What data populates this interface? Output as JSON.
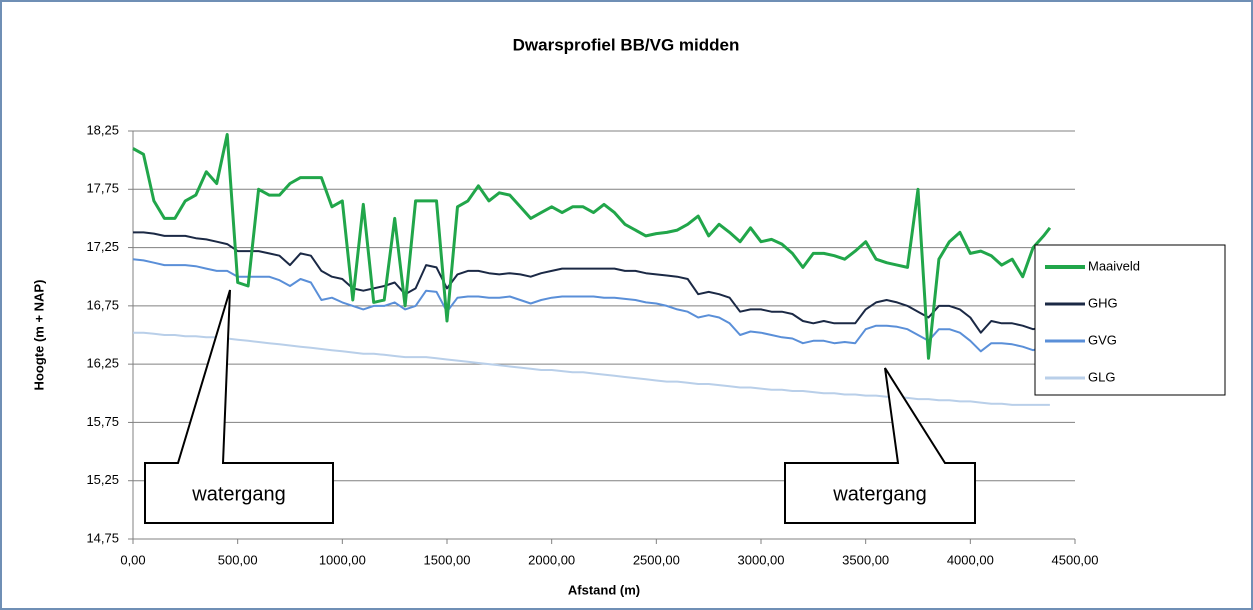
{
  "chart_data": {
    "type": "line",
    "title": "Dwarsprofiel BB/VG midden",
    "xlabel": "Afstand (m)",
    "ylabel": "Hoogte (m + NAP)",
    "annotations": [
      "watergang",
      "watergang"
    ],
    "xlim": [
      0,
      4500
    ],
    "ylim": [
      14.75,
      18.25
    ],
    "xticks": [
      {
        "value": 0,
        "label": "0,00"
      },
      {
        "value": 500,
        "label": "500,00"
      },
      {
        "value": 1000,
        "label": "1000,00"
      },
      {
        "value": 1500,
        "label": "1500,00"
      },
      {
        "value": 2000,
        "label": "2000,00"
      },
      {
        "value": 2500,
        "label": "2500,00"
      },
      {
        "value": 3000,
        "label": "3000,00"
      },
      {
        "value": 3500,
        "label": "3500,00"
      },
      {
        "value": 4000,
        "label": "4000,00"
      },
      {
        "value": 4500,
        "label": "4500,00"
      }
    ],
    "yticks": [
      {
        "value": 14.75,
        "label": "14,75"
      },
      {
        "value": 15.25,
        "label": "15,25"
      },
      {
        "value": 15.75,
        "label": "15,75"
      },
      {
        "value": 16.25,
        "label": "16,25"
      },
      {
        "value": 16.75,
        "label": "16,75"
      },
      {
        "value": 17.25,
        "label": "17,25"
      },
      {
        "value": 17.75,
        "label": "17,75"
      },
      {
        "value": 18.25,
        "label": "18,25"
      }
    ],
    "grid": true,
    "legend": "right",
    "x": [
      0,
      50,
      100,
      150,
      200,
      250,
      300,
      350,
      400,
      450,
      500,
      550,
      600,
      650,
      700,
      750,
      800,
      850,
      900,
      950,
      1000,
      1050,
      1100,
      1150,
      1200,
      1250,
      1300,
      1350,
      1400,
      1450,
      1500,
      1550,
      1600,
      1650,
      1700,
      1750,
      1800,
      1850,
      1900,
      1950,
      2000,
      2050,
      2100,
      2150,
      2200,
      2250,
      2300,
      2350,
      2400,
      2450,
      2500,
      2550,
      2600,
      2650,
      2700,
      2750,
      2800,
      2850,
      2900,
      2950,
      3000,
      3050,
      3100,
      3150,
      3200,
      3250,
      3300,
      3350,
      3400,
      3450,
      3500,
      3550,
      3600,
      3650,
      3700,
      3750,
      3800,
      3850,
      3900,
      3950,
      4000,
      4050,
      4100,
      4150,
      4200,
      4250,
      4300,
      4350,
      4380
    ],
    "series": [
      {
        "name": "Maaiveld",
        "color": "#21a64a",
        "width": 3,
        "values": [
          18.1,
          18.05,
          17.65,
          17.5,
          17.5,
          17.65,
          17.7,
          17.9,
          17.8,
          18.22,
          16.95,
          16.92,
          17.75,
          17.7,
          17.7,
          17.8,
          17.85,
          17.85,
          17.85,
          17.6,
          17.65,
          16.8,
          17.62,
          16.78,
          16.8,
          17.5,
          16.75,
          17.65,
          17.65,
          17.65,
          16.62,
          17.6,
          17.65,
          17.78,
          17.65,
          17.72,
          17.7,
          17.6,
          17.5,
          17.55,
          17.6,
          17.55,
          17.6,
          17.6,
          17.55,
          17.62,
          17.55,
          17.45,
          17.4,
          17.35,
          17.37,
          17.38,
          17.4,
          17.45,
          17.52,
          17.35,
          17.45,
          17.38,
          17.3,
          17.42,
          17.3,
          17.32,
          17.28,
          17.2,
          17.08,
          17.2,
          17.2,
          17.18,
          17.15,
          17.22,
          17.3,
          17.15,
          17.12,
          17.1,
          17.08,
          17.75,
          16.3,
          17.15,
          17.3,
          17.38,
          17.2,
          17.22,
          17.18,
          17.1,
          17.15,
          17.0,
          17.25,
          17.35,
          17.42
        ]
      },
      {
        "name": "GHG",
        "color": "#1b2945",
        "width": 2,
        "values": [
          17.38,
          17.38,
          17.37,
          17.35,
          17.35,
          17.35,
          17.33,
          17.32,
          17.3,
          17.28,
          17.22,
          17.22,
          17.22,
          17.2,
          17.18,
          17.1,
          17.2,
          17.18,
          17.05,
          17.0,
          16.98,
          16.9,
          16.88,
          16.9,
          16.92,
          16.95,
          16.85,
          16.9,
          17.1,
          17.08,
          16.9,
          17.02,
          17.05,
          17.05,
          17.03,
          17.02,
          17.03,
          17.02,
          17.0,
          17.03,
          17.05,
          17.07,
          17.07,
          17.07,
          17.07,
          17.07,
          17.07,
          17.05,
          17.05,
          17.03,
          17.02,
          17.01,
          17.0,
          16.98,
          16.85,
          16.87,
          16.85,
          16.82,
          16.7,
          16.72,
          16.72,
          16.7,
          16.7,
          16.68,
          16.62,
          16.6,
          16.62,
          16.6,
          16.6,
          16.6,
          16.72,
          16.78,
          16.8,
          16.78,
          16.75,
          16.7,
          16.65,
          16.75,
          16.75,
          16.72,
          16.65,
          16.52,
          16.62,
          16.6,
          16.6,
          16.58,
          16.55,
          16.57,
          16.58
        ]
      },
      {
        "name": "GVG",
        "color": "#5a8fd8",
        "width": 2,
        "values": [
          17.15,
          17.14,
          17.12,
          17.1,
          17.1,
          17.1,
          17.09,
          17.07,
          17.05,
          17.05,
          17.0,
          17.0,
          17.0,
          17.0,
          16.97,
          16.92,
          16.98,
          16.95,
          16.8,
          16.82,
          16.78,
          16.75,
          16.72,
          16.75,
          16.75,
          16.78,
          16.72,
          16.75,
          16.88,
          16.87,
          16.7,
          16.82,
          16.83,
          16.83,
          16.82,
          16.82,
          16.83,
          16.8,
          16.77,
          16.8,
          16.82,
          16.83,
          16.83,
          16.83,
          16.83,
          16.82,
          16.82,
          16.81,
          16.8,
          16.78,
          16.77,
          16.75,
          16.72,
          16.7,
          16.65,
          16.67,
          16.65,
          16.6,
          16.5,
          16.53,
          16.52,
          16.5,
          16.48,
          16.47,
          16.43,
          16.45,
          16.45,
          16.43,
          16.44,
          16.43,
          16.55,
          16.58,
          16.58,
          16.57,
          16.55,
          16.5,
          16.45,
          16.55,
          16.55,
          16.52,
          16.45,
          16.36,
          16.43,
          16.43,
          16.42,
          16.4,
          16.37,
          16.4,
          16.41
        ]
      },
      {
        "name": "GLG",
        "color": "#b9cfe9",
        "width": 2,
        "values": [
          16.52,
          16.52,
          16.51,
          16.5,
          16.5,
          16.49,
          16.49,
          16.48,
          16.48,
          16.47,
          16.46,
          16.45,
          16.44,
          16.43,
          16.42,
          16.41,
          16.4,
          16.39,
          16.38,
          16.37,
          16.36,
          16.35,
          16.34,
          16.34,
          16.33,
          16.32,
          16.31,
          16.31,
          16.31,
          16.3,
          16.29,
          16.28,
          16.27,
          16.26,
          16.25,
          16.24,
          16.23,
          16.22,
          16.21,
          16.2,
          16.2,
          16.19,
          16.18,
          16.18,
          16.17,
          16.16,
          16.15,
          16.14,
          16.13,
          16.12,
          16.11,
          16.1,
          16.1,
          16.09,
          16.08,
          16.08,
          16.07,
          16.06,
          16.05,
          16.05,
          16.04,
          16.03,
          16.03,
          16.02,
          16.02,
          16.01,
          16.0,
          16.0,
          15.99,
          15.99,
          15.98,
          15.98,
          15.97,
          15.97,
          15.96,
          15.95,
          15.95,
          15.94,
          15.94,
          15.93,
          15.93,
          15.92,
          15.91,
          15.91,
          15.9,
          15.9,
          15.9,
          15.9,
          15.9
        ]
      }
    ]
  }
}
